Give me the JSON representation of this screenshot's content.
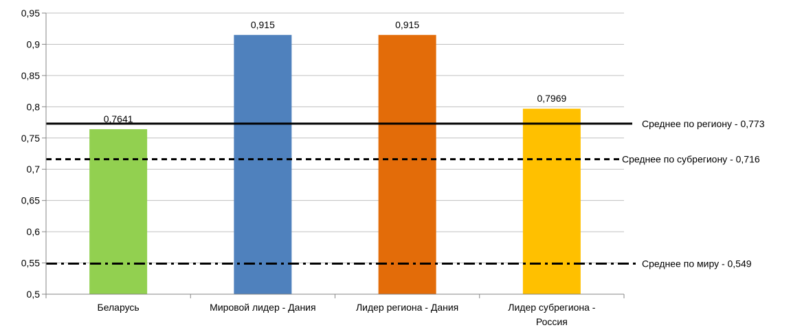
{
  "chart_data": {
    "type": "bar",
    "categories": [
      "Беларусь",
      "Мировой лидер - Дания",
      "Лидер региона - Дания",
      "Лидер субрегиона - Россия"
    ],
    "category_label_lines": [
      [
        "Беларусь"
      ],
      [
        "Мировой лидер - Дания"
      ],
      [
        "Лидер региона - Дания"
      ],
      [
        "Лидер субрегиона -",
        "Россия"
      ]
    ],
    "values": [
      0.7641,
      0.915,
      0.915,
      0.7969
    ],
    "value_labels": [
      "0,7641",
      "0,915",
      "0,915",
      "0,7969"
    ],
    "colors": [
      "#92d050",
      "#4f81bd",
      "#e36c09",
      "#ffc000"
    ],
    "ylim": [
      0.5,
      0.95
    ],
    "yticks": [
      0.5,
      0.55,
      0.6,
      0.65,
      0.7,
      0.75,
      0.8,
      0.85,
      0.9,
      0.95
    ],
    "ytick_labels": [
      "0,5",
      "0,55",
      "0,6",
      "0,65",
      "0,7",
      "0,75",
      "0,8",
      "0,85",
      "0,9",
      "0,95"
    ],
    "grid": true,
    "reference_lines": [
      {
        "value": 0.773,
        "label": "Среднее по региону - 0,773",
        "style": "solid"
      },
      {
        "value": 0.716,
        "label": "Среднее по субрегиону - 0,716",
        "style": "dashed"
      },
      {
        "value": 0.549,
        "label": "Среднее по миру - 0,549",
        "style": "dashdot"
      }
    ]
  }
}
